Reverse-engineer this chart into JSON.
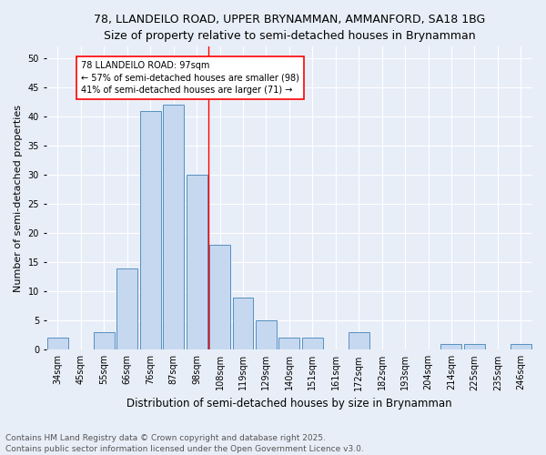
{
  "title1": "78, LLANDEILO ROAD, UPPER BRYNAMMAN, AMMANFORD, SA18 1BG",
  "title2": "Size of property relative to semi-detached houses in Brynamman",
  "xlabel": "Distribution of semi-detached houses by size in Brynamman",
  "ylabel": "Number of semi-detached properties",
  "categories": [
    "34sqm",
    "45sqm",
    "55sqm",
    "66sqm",
    "76sqm",
    "87sqm",
    "98sqm",
    "108sqm",
    "119sqm",
    "129sqm",
    "140sqm",
    "151sqm",
    "161sqm",
    "172sqm",
    "182sqm",
    "193sqm",
    "204sqm",
    "214sqm",
    "225sqm",
    "235sqm",
    "246sqm"
  ],
  "values": [
    2,
    0,
    3,
    14,
    41,
    42,
    30,
    18,
    9,
    5,
    2,
    2,
    0,
    3,
    0,
    0,
    0,
    1,
    1,
    0,
    1
  ],
  "bar_color": "#c5d8f0",
  "bar_edge_color": "#5590c0",
  "background_color": "#e8eef8",
  "grid_color": "#ffffff",
  "red_line_x": 6.5,
  "annotation_label": "78 LLANDEILO ROAD: 97sqm",
  "annotation_line1": "← 57% of semi-detached houses are smaller (98)",
  "annotation_line2": "41% of semi-detached houses are larger (71) →",
  "ylim": [
    0,
    52
  ],
  "yticks": [
    0,
    5,
    10,
    15,
    20,
    25,
    30,
    35,
    40,
    45,
    50
  ],
  "footer1": "Contains HM Land Registry data © Crown copyright and database right 2025.",
  "footer2": "Contains public sector information licensed under the Open Government Licence v3.0.",
  "title1_fontsize": 9,
  "title2_fontsize": 9,
  "xlabel_fontsize": 8.5,
  "ylabel_fontsize": 8,
  "tick_fontsize": 7,
  "footer_fontsize": 6.5,
  "annot_fontsize": 7
}
